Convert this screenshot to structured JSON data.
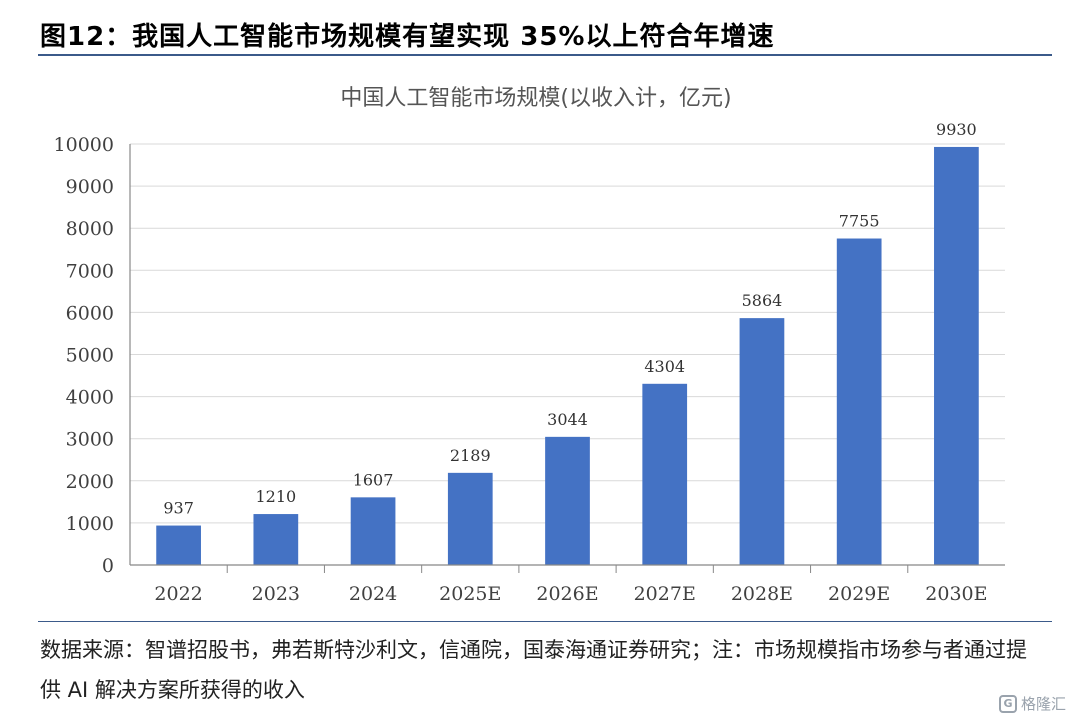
{
  "figure": {
    "title": "图12：我国人工智能市场规模有望实现 35%以上符合年增速",
    "source_note": "数据来源：智谱招股书，弗若斯特沙利文，信通院，国泰海通证券研究；注：市场规模指市场参与者通过提供 AI 解决方案所获得的收入",
    "watermark": "格隆汇",
    "watermark_logo": "G"
  },
  "chart_data": {
    "type": "bar",
    "title": "中国人工智能市场规模(以收入计，亿元)",
    "categories": [
      "2022",
      "2023",
      "2024",
      "2025E",
      "2026E",
      "2027E",
      "2028E",
      "2029E",
      "2030E"
    ],
    "values": [
      937,
      1210,
      1607,
      2189,
      3044,
      4304,
      5864,
      7755,
      9930
    ],
    "data_labels": [
      "937",
      "1210",
      "1607",
      "2189",
      "3044",
      "4304",
      "5864",
      "7755",
      "9930"
    ],
    "ylim": [
      0,
      10000
    ],
    "yticks": [
      0,
      1000,
      2000,
      3000,
      4000,
      5000,
      6000,
      7000,
      8000,
      9000,
      10000
    ],
    "grid": true,
    "bar_color": "#4472C4",
    "xlabel": "",
    "ylabel": ""
  }
}
